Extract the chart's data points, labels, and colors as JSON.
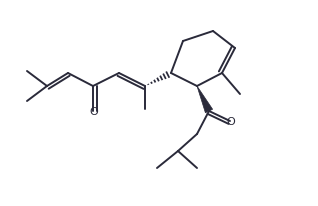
{
  "background_color": "#ffffff",
  "line_color": "#2a2a3a",
  "line_width": 1.4,
  "fig_width": 3.18,
  "fig_height": 2.07,
  "dpi": 100
}
